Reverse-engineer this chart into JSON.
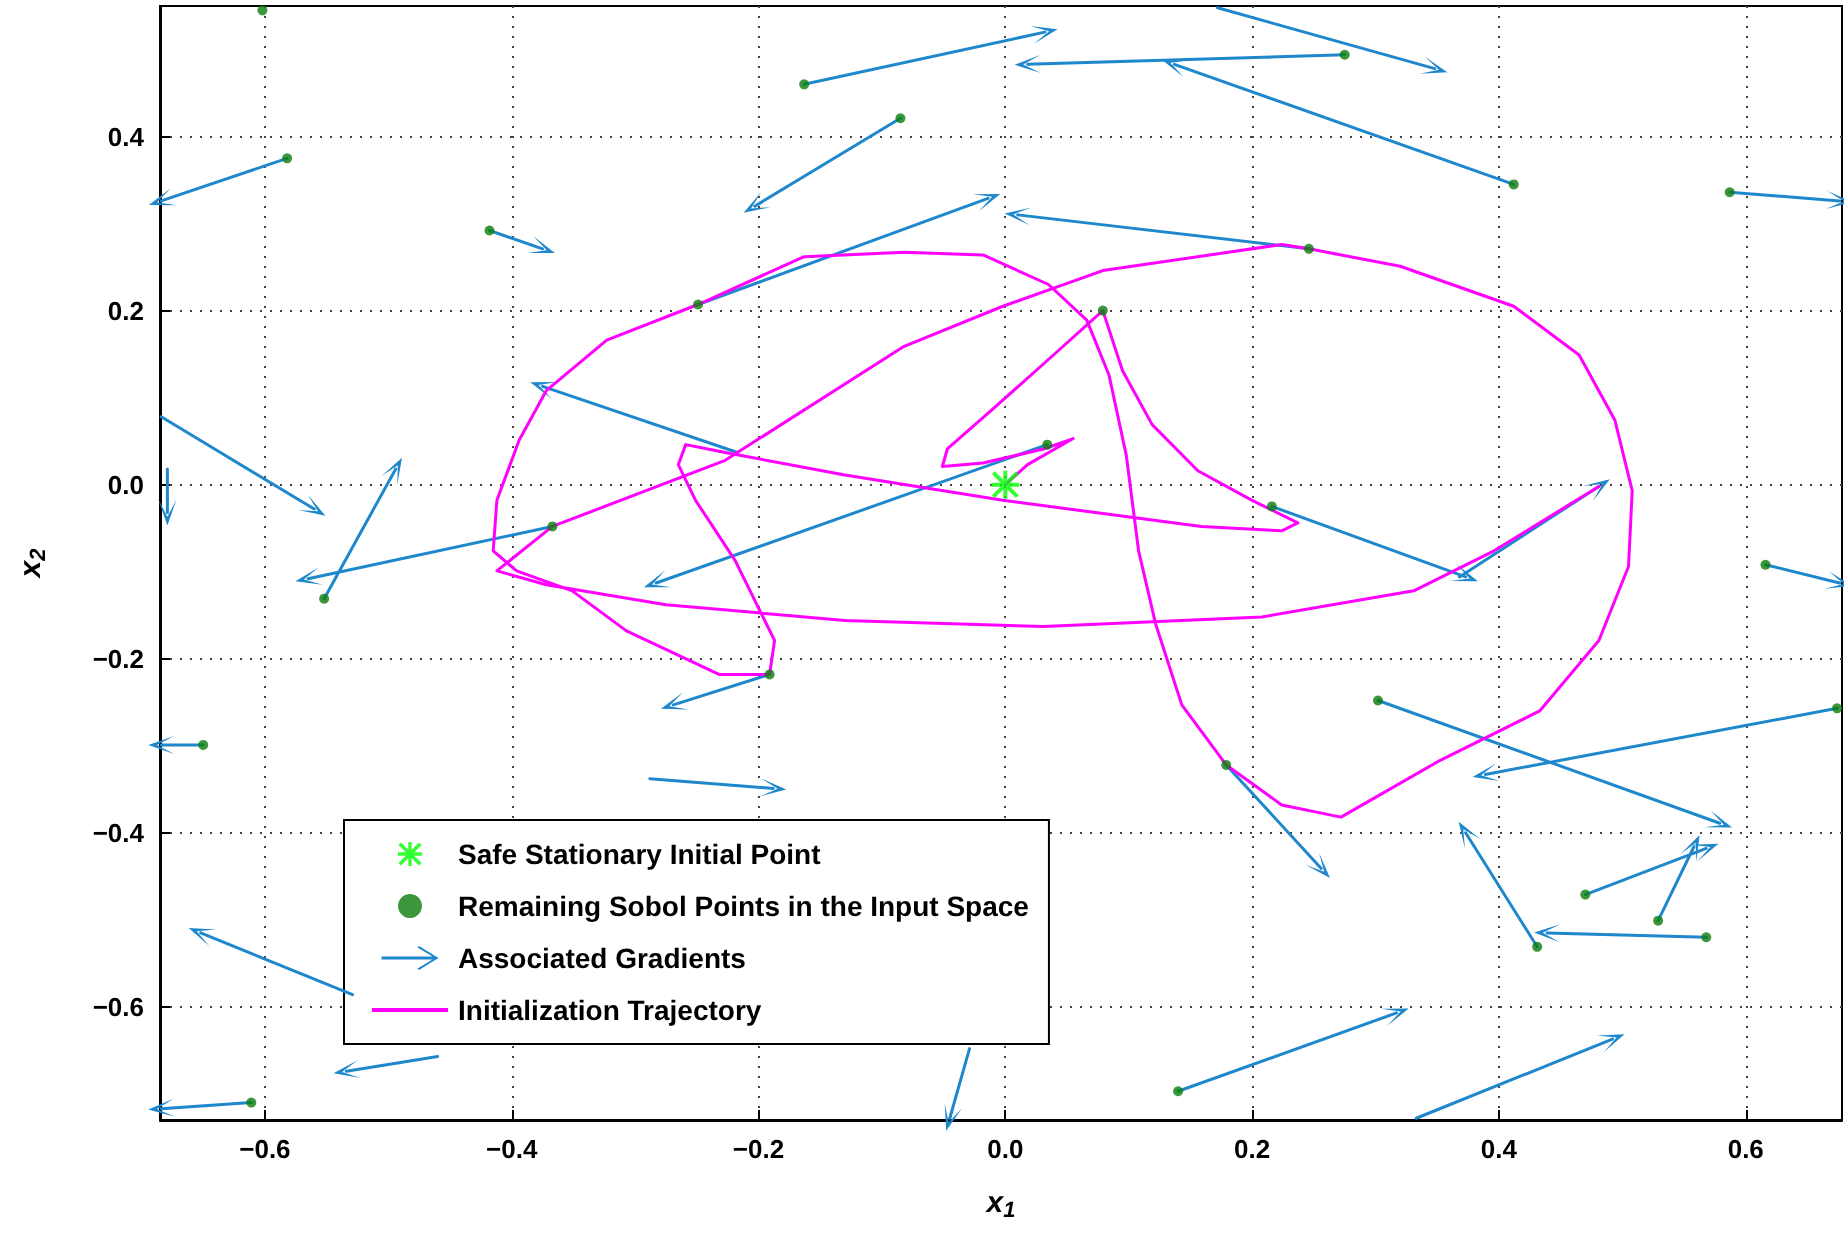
{
  "chart_data": {
    "type": "scatter",
    "xlabel": "x$_{1}$",
    "ylabel": "x$_{2}$",
    "xlim": [
      -0.685,
      0.678
    ],
    "ylim": [
      -0.73,
      0.55
    ],
    "xticks": [
      {
        "value": -0.6,
        "label": "−0.6"
      },
      {
        "value": -0.4,
        "label": "−0.4"
      },
      {
        "value": -0.2,
        "label": "−0.2"
      },
      {
        "value": 0,
        "label": "0.0"
      },
      {
        "value": 0.2,
        "label": "0.2"
      },
      {
        "value": 0.4,
        "label": "0.4"
      },
      {
        "value": 0.6,
        "label": "0.6"
      }
    ],
    "yticks": [
      {
        "value": -0.6,
        "label": "−0.6"
      },
      {
        "value": -0.4,
        "label": "−0.4"
      },
      {
        "value": -0.2,
        "label": "−0.2"
      },
      {
        "value": 0,
        "label": "0.0"
      },
      {
        "value": 0.2,
        "label": "0.2"
      },
      {
        "value": 0.4,
        "label": "0.4"
      }
    ],
    "grid": true,
    "legend": "bottom left",
    "series": [
      {
        "name": "Safe Stationary Initial Point",
        "type": "scatter",
        "marker": "star",
        "color": "#00ff00",
        "x": [
          0
        ],
        "values": [
          0
        ]
      },
      {
        "name": "Remaining Sobol Points in the Input Space",
        "type": "scatter",
        "marker": "circle",
        "color": "#0b7d0b",
        "x": [
          -0.602,
          -0.582,
          -0.418,
          -0.163,
          -0.085,
          0.275,
          0.412,
          0.587,
          0.246,
          -0.249,
          0.079,
          -0.367,
          -0.552,
          0.034,
          0.216,
          -0.191,
          0.179,
          0.302,
          0.674,
          0.616,
          0.431,
          0.47,
          0.529,
          0.568,
          -0.65,
          -0.611,
          0.14
        ],
        "values": [
          0.545,
          0.375,
          0.292,
          0.46,
          0.421,
          0.494,
          0.345,
          0.336,
          0.271,
          0.207,
          0.2,
          -0.048,
          -0.131,
          0.046,
          -0.025,
          -0.218,
          -0.322,
          -0.248,
          -0.257,
          -0.092,
          -0.531,
          -0.471,
          -0.501,
          -0.52,
          -0.299,
          -0.71,
          -0.697
        ]
      },
      {
        "name": "Associated Gradients",
        "type": "line",
        "color": "#1f88cc",
        "x": [
          -0.582,
          -0.684,
          null,
          -0.418,
          -0.375,
          null,
          -0.163,
          0.032,
          null,
          -0.085,
          -0.203,
          null,
          0.275,
          0.018,
          null,
          0.172,
          0.348,
          null,
          0.412,
          0.137,
          null,
          0.587,
          0.676,
          null,
          0.246,
          0.01,
          null,
          -0.249,
          -0.014,
          null,
          -0.217,
          -0.375,
          null,
          0.034,
          -0.283,
          null,
          -0.367,
          -0.565,
          null,
          -0.552,
          -0.494,
          null,
          -0.684,
          -0.56,
          null,
          -0.679,
          -0.679,
          null,
          -0.191,
          -0.269,
          null,
          -0.288,
          -0.188,
          null,
          0.179,
          0.256,
          null,
          0.302,
          0.579,
          null,
          0.674,
          0.389,
          null,
          0.616,
          0.676,
          null,
          0.431,
          0.373,
          null,
          0.47,
          0.568,
          null,
          0.529,
          0.558,
          null,
          0.568,
          0.439,
          null,
          0.216,
          0.373,
          null,
          0.368,
          0.481,
          null,
          -0.529,
          -0.652,
          null,
          -0.46,
          -0.534,
          null,
          -0.611,
          -0.684,
          null,
          -0.65,
          -0.684,
          null,
          -0.029,
          -0.045,
          null,
          0.14,
          0.317,
          null,
          0.333,
          0.492
        ],
        "values": [
          0.375,
          0.326,
          null,
          0.292,
          0.271,
          null,
          0.46,
          0.52,
          null,
          0.421,
          0.32,
          null,
          0.494,
          0.483,
          null,
          0.548,
          0.478,
          null,
          0.345,
          0.483,
          null,
          0.336,
          0.326,
          null,
          0.271,
          0.31,
          null,
          0.207,
          0.329,
          null,
          0.037,
          0.113,
          null,
          0.046,
          -0.113,
          null,
          -0.048,
          -0.108,
          null,
          -0.131,
          0.018,
          null,
          0.078,
          -0.028,
          null,
          0.018,
          -0.032,
          null,
          -0.218,
          -0.253,
          null,
          -0.338,
          -0.349,
          null,
          -0.322,
          -0.441,
          null,
          -0.248,
          -0.389,
          null,
          -0.257,
          -0.333,
          null,
          -0.092,
          -0.113,
          null,
          -0.531,
          -0.4,
          null,
          -0.471,
          -0.418,
          null,
          -0.501,
          -0.416,
          null,
          -0.52,
          -0.515,
          null,
          -0.025,
          -0.106,
          null,
          -0.106,
          -0.002,
          null,
          -0.586,
          -0.515,
          null,
          -0.657,
          -0.674,
          null,
          -0.71,
          -0.717,
          null,
          -0.299,
          -0.299,
          null,
          -0.648,
          -0.728,
          null,
          -0.697,
          -0.607,
          null,
          -0.728,
          -0.637
        ]
      },
      {
        "name": "Initialization Trajectory",
        "type": "line",
        "color": "#ff00ff",
        "x": [
          0,
          0.018,
          0.055,
          0.031,
          -0.018,
          -0.051,
          -0.047,
          -0.01,
          0.039,
          0.079,
          0.095,
          0.119,
          0.156,
          0.2,
          0.237,
          0.224,
          0.159,
          -0.002,
          -0.13,
          -0.227,
          -0.259,
          -0.265,
          -0.251,
          -0.219,
          -0.187,
          -0.191,
          -0.232,
          -0.307,
          -0.351,
          -0.396,
          -0.415,
          -0.412,
          -0.394,
          -0.372,
          -0.323,
          -0.249,
          -0.163,
          -0.082,
          -0.018,
          0.035,
          0.066,
          0.084,
          0.098,
          0.108,
          0.122,
          0.143,
          0.179,
          0.224,
          0.272,
          0.352,
          0.433,
          0.481,
          0.505,
          0.508,
          0.494,
          0.465,
          0.412,
          0.32,
          0.246,
          0.224,
          0.079,
          -0.002,
          -0.082,
          -0.227,
          -0.367,
          -0.412,
          -0.372,
          -0.275,
          -0.13,
          0.031,
          0.208,
          0.331,
          0.396,
          0.481
        ],
        "values": [
          0,
          0.023,
          0.053,
          0.041,
          0.025,
          0.021,
          0.041,
          0.087,
          0.149,
          0.2,
          0.131,
          0.069,
          0.016,
          -0.018,
          -0.044,
          -0.053,
          -0.048,
          -0.018,
          0.011,
          0.037,
          0.046,
          0.023,
          -0.018,
          -0.087,
          -0.179,
          -0.218,
          -0.218,
          -0.168,
          -0.122,
          -0.099,
          -0.076,
          -0.018,
          0.051,
          0.108,
          0.166,
          0.207,
          0.262,
          0.267,
          0.264,
          0.23,
          0.189,
          0.126,
          0.034,
          -0.076,
          -0.161,
          -0.253,
          -0.322,
          -0.368,
          -0.382,
          -0.317,
          -0.26,
          -0.179,
          -0.094,
          -0.007,
          0.074,
          0.149,
          0.205,
          0.251,
          0.271,
          0.276,
          0.246,
          0.205,
          0.159,
          0.028,
          -0.048,
          -0.099,
          -0.115,
          -0.138,
          -0.156,
          -0.163,
          -0.152,
          -0.122,
          -0.076,
          -0.002
        ]
      }
    ]
  }
}
